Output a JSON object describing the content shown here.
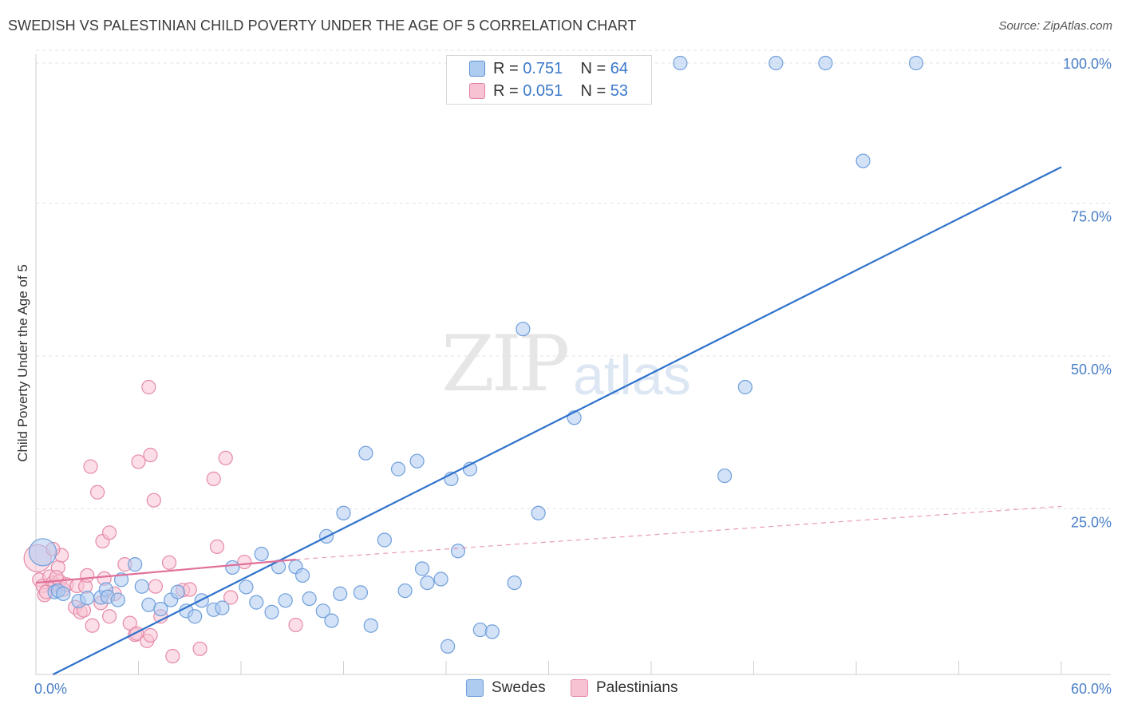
{
  "title": "SWEDISH VS PALESTINIAN CHILD POVERTY UNDER THE AGE OF 5 CORRELATION CHART",
  "source": "Source: ZipAtlas.com",
  "watermark": {
    "zip": "ZIP",
    "atlas": "atlas"
  },
  "legend": {
    "rows": [
      {
        "r_label": "R =",
        "r_value": "0.751",
        "n_label": "N =",
        "n_value": "64",
        "color": "#aecbf0",
        "border": "#5b8fd6"
      },
      {
        "r_label": "R =",
        "r_value": "0.051",
        "n_label": "N =",
        "n_value": "53",
        "color": "#f7c3d3",
        "border": "#e27fa0"
      }
    ]
  },
  "bottom_legend": {
    "swedes": "Swedes",
    "palestinians": "Palestinians"
  },
  "chart_data": {
    "type": "scatter",
    "title": "SWEDISH VS PALESTINIAN CHILD POVERTY UNDER THE AGE OF 5 CORRELATION CHART",
    "xlabel": "",
    "ylabel": "Child Poverty Under the Age of 5",
    "xlim": [
      0,
      60
    ],
    "ylim": [
      0,
      103
    ],
    "x_tick_labels": [
      "0.0%",
      "60.0%"
    ],
    "y_ticks": [
      25,
      50,
      75,
      100
    ],
    "y_tick_labels": [
      "25.0%",
      "50.0%",
      "75.0%",
      "100.0%"
    ],
    "colors": {
      "swedes_fill": "#aecbf0",
      "swedes_stroke": "#6f9fdc",
      "swedes_line": "#2f72cc",
      "palestinians_fill": "#f7c3d3",
      "palestinians_stroke": "#e68aa8",
      "palestinians_line": "#e0709a"
    },
    "series": [
      {
        "name": "Swedes",
        "trend": {
          "x": [
            1.0,
            60.0
          ],
          "y": [
            0.0,
            83.0
          ]
        },
        "points": [
          [
            0.4,
            20.0,
            "big"
          ],
          [
            1.1,
            13.5
          ],
          [
            1.3,
            13.7
          ],
          [
            1.6,
            13.2
          ],
          [
            2.5,
            12.0
          ],
          [
            3.0,
            12.5
          ],
          [
            3.8,
            12.6
          ],
          [
            4.1,
            13.9
          ],
          [
            4.2,
            12.7
          ],
          [
            4.8,
            12.2
          ],
          [
            5.0,
            15.5
          ],
          [
            5.8,
            18.0
          ],
          [
            6.2,
            14.4
          ],
          [
            6.6,
            11.4
          ],
          [
            7.3,
            10.7
          ],
          [
            7.9,
            12.2
          ],
          [
            8.3,
            13.5
          ],
          [
            8.8,
            10.4
          ],
          [
            9.3,
            9.5
          ],
          [
            9.7,
            12.1
          ],
          [
            10.4,
            10.6
          ],
          [
            10.9,
            10.9
          ],
          [
            11.5,
            17.5
          ],
          [
            12.3,
            14.3
          ],
          [
            12.9,
            11.8
          ],
          [
            13.2,
            19.7
          ],
          [
            13.8,
            10.2
          ],
          [
            14.2,
            17.6
          ],
          [
            14.6,
            12.1
          ],
          [
            15.2,
            17.6
          ],
          [
            15.6,
            16.2
          ],
          [
            16.0,
            12.4
          ],
          [
            16.8,
            10.4
          ],
          [
            17.3,
            8.8
          ],
          [
            17.0,
            22.6
          ],
          [
            17.8,
            13.2
          ],
          [
            18.0,
            26.4
          ],
          [
            19.0,
            13.4
          ],
          [
            19.3,
            36.2
          ],
          [
            19.6,
            8.0
          ],
          [
            20.4,
            22.0
          ],
          [
            21.2,
            33.6
          ],
          [
            21.6,
            13.7
          ],
          [
            22.3,
            34.9
          ],
          [
            22.6,
            17.3
          ],
          [
            22.9,
            15.0
          ],
          [
            23.7,
            15.6
          ],
          [
            24.1,
            4.6
          ],
          [
            24.3,
            32.0
          ],
          [
            24.7,
            20.2
          ],
          [
            25.4,
            33.6
          ],
          [
            26.0,
            7.3
          ],
          [
            26.7,
            7.0
          ],
          [
            28.0,
            15.0
          ],
          [
            28.5,
            56.5
          ],
          [
            29.4,
            26.4
          ],
          [
            31.5,
            42.0
          ],
          [
            37.7,
            100.0
          ],
          [
            40.3,
            32.5
          ],
          [
            41.5,
            47.0
          ],
          [
            43.3,
            100.0
          ],
          [
            46.2,
            100.0
          ],
          [
            48.4,
            84.0
          ],
          [
            51.5,
            100.0
          ]
        ]
      },
      {
        "name": "Palestinians",
        "trend": {
          "x": [
            0.0,
            15.2
          ],
          "y": [
            15.0,
            18.8
          ],
          "dashed_to": [
            60.0,
            27.5
          ]
        },
        "points": [
          [
            0.1,
            19.0,
            "big"
          ],
          [
            0.2,
            15.5
          ],
          [
            0.4,
            14.5
          ],
          [
            0.5,
            13.0
          ],
          [
            0.8,
            16.0
          ],
          [
            1.0,
            15.0
          ],
          [
            1.1,
            14.6
          ],
          [
            1.4,
            15.2
          ],
          [
            1.6,
            13.9
          ],
          [
            1.3,
            17.5
          ],
          [
            1.5,
            19.5
          ],
          [
            1.0,
            20.5
          ],
          [
            1.2,
            15.9
          ],
          [
            1.8,
            14.7
          ],
          [
            2.4,
            14.5
          ],
          [
            2.3,
            11.0
          ],
          [
            2.9,
            14.4
          ],
          [
            2.6,
            10.2
          ],
          [
            2.8,
            10.5
          ],
          [
            3.3,
            8.0
          ],
          [
            3.0,
            16.2
          ],
          [
            3.8,
            11.7
          ],
          [
            4.0,
            15.7
          ],
          [
            4.3,
            9.5
          ],
          [
            4.6,
            13.2
          ],
          [
            3.9,
            21.8
          ],
          [
            4.3,
            23.2
          ],
          [
            3.6,
            29.8
          ],
          [
            3.2,
            34.0
          ],
          [
            5.5,
            8.4
          ],
          [
            5.8,
            6.5
          ],
          [
            5.9,
            6.7
          ],
          [
            6.5,
            5.5
          ],
          [
            6.7,
            6.4
          ],
          [
            7.0,
            14.4
          ],
          [
            7.3,
            9.5
          ],
          [
            5.2,
            18.0
          ],
          [
            7.8,
            18.3
          ],
          [
            6.0,
            34.8
          ],
          [
            6.7,
            35.9
          ],
          [
            6.6,
            47.0
          ],
          [
            6.9,
            28.5
          ],
          [
            8.0,
            3.0
          ],
          [
            8.6,
            13.8
          ],
          [
            9.0,
            13.9
          ],
          [
            9.6,
            4.2
          ],
          [
            10.4,
            32.0
          ],
          [
            10.6,
            20.9
          ],
          [
            11.1,
            35.4
          ],
          [
            11.4,
            12.6
          ],
          [
            12.2,
            18.4
          ],
          [
            15.2,
            8.1
          ],
          [
            0.6,
            13.5
          ]
        ]
      }
    ]
  }
}
